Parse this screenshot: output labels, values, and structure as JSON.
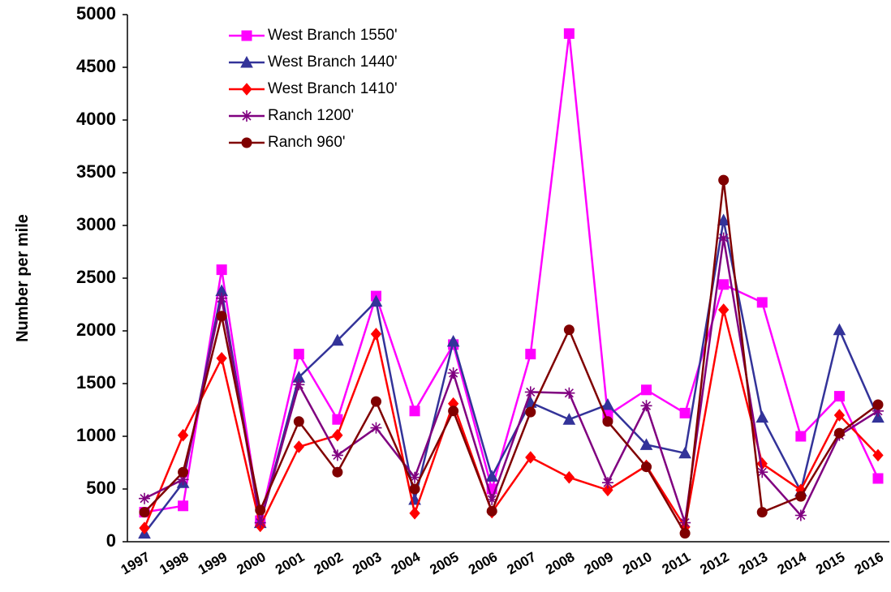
{
  "chart_data": {
    "type": "line",
    "y_label": "Number per mile",
    "categories": [
      "1997",
      "1998",
      "1999",
      "2000",
      "2001",
      "2002",
      "2003",
      "2004",
      "2005",
      "2006",
      "2007",
      "2008",
      "2009",
      "2010",
      "2011",
      "2012",
      "2013",
      "2014",
      "2015",
      "2016"
    ],
    "series": [
      {
        "name": "West Branch 1550'",
        "color": "#ff00ff",
        "marker": "square",
        "values": [
          280,
          340,
          2580,
          200,
          1780,
          1160,
          2330,
          1240,
          1870,
          500,
          1780,
          4820,
          1200,
          1440,
          1220,
          2440,
          2270,
          1000,
          1380,
          600
        ]
      },
      {
        "name": "West Branch 1440'",
        "color": "#333399",
        "marker": "triangle",
        "values": [
          80,
          560,
          2380,
          180,
          1560,
          1910,
          2280,
          400,
          1900,
          620,
          1320,
          1160,
          1300,
          920,
          840,
          3050,
          1180,
          480,
          2010,
          1180
        ]
      },
      {
        "name": "West Branch 1410'",
        "color": "#ff0000",
        "marker": "diamond",
        "values": [
          130,
          1010,
          1740,
          150,
          900,
          1010,
          1970,
          270,
          1310,
          280,
          800,
          610,
          490,
          720,
          140,
          2200,
          740,
          490,
          1200,
          820
        ]
      },
      {
        "name": "Ranch 1200'",
        "color": "#800080",
        "marker": "star",
        "values": [
          410,
          590,
          2310,
          180,
          1490,
          820,
          1080,
          610,
          1600,
          400,
          1420,
          1410,
          560,
          1290,
          180,
          2880,
          660,
          250,
          1010,
          1240
        ]
      },
      {
        "name": "Ranch 960'",
        "color": "#800000",
        "marker": "circle",
        "values": [
          280,
          660,
          2140,
          300,
          1140,
          660,
          1330,
          500,
          1240,
          290,
          1230,
          2010,
          1140,
          710,
          80,
          3430,
          280,
          430,
          1030,
          1300
        ]
      }
    ],
    "ylim": [
      0,
      5000
    ],
    "yticks": [
      0,
      500,
      1000,
      1500,
      2000,
      2500,
      3000,
      3500,
      4000,
      4500,
      5000
    ],
    "grid": false,
    "legend": "upper left"
  }
}
